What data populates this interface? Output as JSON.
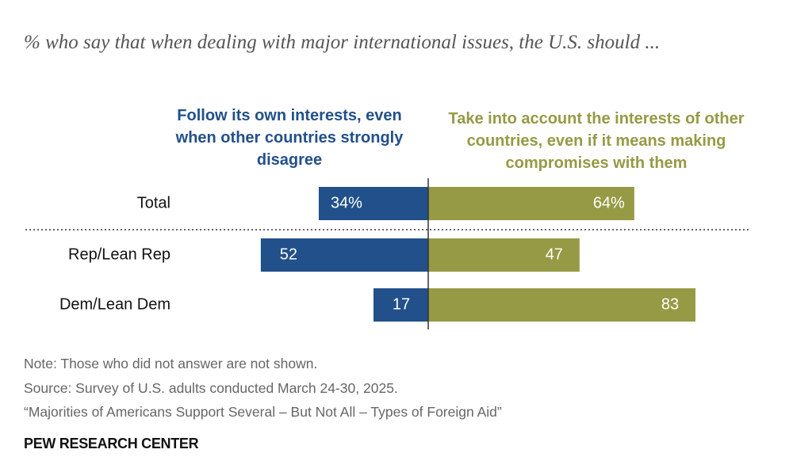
{
  "chart_data": {
    "type": "diverging-bar",
    "title": "% who say that when dealing with major international issues, the U.S. should ...",
    "categories": [
      "Total",
      "Rep/Lean Rep",
      "Dem/Lean Dem"
    ],
    "series": [
      {
        "name": "Follow its own interests, even when other countries strongly disagree",
        "color": "#22508a",
        "values": [
          34,
          52,
          17
        ],
        "value_labels": [
          "34%",
          "52",
          "17"
        ]
      },
      {
        "name": "Take into account the interests of other countries, even if it means making compromises with them",
        "color": "#969a44",
        "values": [
          64,
          47,
          83
        ],
        "value_labels": [
          "64%",
          "47",
          "83"
        ]
      }
    ],
    "note": "Note: Those who did not answer are not shown.",
    "source": "Source: Survey of U.S. adults conducted March 24-30, 2025.",
    "report": "“Majorities of Americans Support Several – But Not All – Types of Foreign Aid”",
    "organization": "PEW RESEARCH CENTER"
  }
}
